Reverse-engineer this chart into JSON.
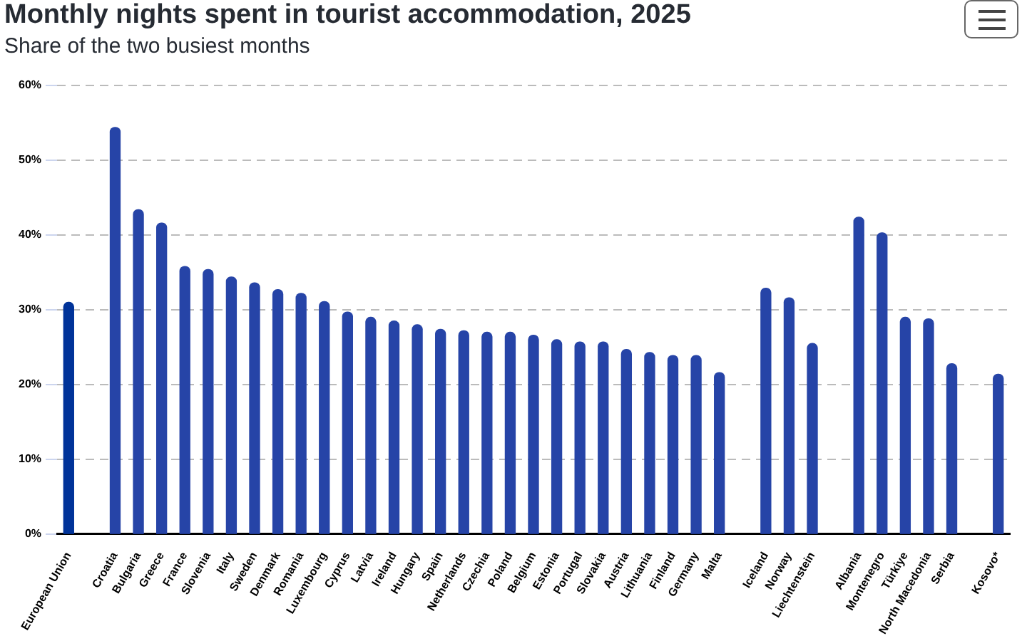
{
  "chart_data": {
    "type": "bar",
    "title": "Monthly nights spent in tourist accommodation, 2025",
    "subtitle": "Share of the two busiest months",
    "categories": [
      "European Union",
      null,
      "Croatia",
      "Bulgaria",
      "Greece",
      "France",
      "Slovenia",
      "Italy",
      "Sweden",
      "Denmark",
      "Romania",
      "Luxembourg",
      "Cyprus",
      "Latvia",
      "Ireland",
      "Hungary",
      "Spain",
      "Netherlands",
      "Czechia",
      "Poland",
      "Belgium",
      "Estonia",
      "Portugal",
      "Slovakia",
      "Austria",
      "Lithuania",
      "Finland",
      "Germany",
      "Malta",
      null,
      "Iceland",
      "Norway",
      "Liechtenstein",
      null,
      "Albania",
      "Montenegro",
      "Türkiye",
      "North Macedonia",
      "Serbia",
      null,
      "Kosovo*"
    ],
    "values": [
      31.0,
      null,
      54.4,
      43.4,
      41.6,
      35.8,
      35.4,
      34.4,
      33.6,
      32.7,
      32.2,
      31.1,
      29.7,
      29.0,
      28.5,
      28.0,
      27.4,
      27.2,
      27.0,
      27.0,
      26.6,
      26.0,
      25.7,
      25.7,
      24.7,
      24.3,
      23.9,
      23.9,
      21.6,
      null,
      32.9,
      31.6,
      25.5,
      null,
      42.4,
      40.3,
      29.0,
      28.8,
      22.8,
      null,
      21.4
    ],
    "colors": [
      "#003399",
      "#2644a7",
      "#2644a7",
      "#2644a7",
      "#2644a7",
      "#2644a7",
      "#2644a7",
      "#2644a7",
      "#2644a7",
      "#2644a7",
      "#2644a7",
      "#2644a7",
      "#2644a7",
      "#2644a7",
      "#2644a7",
      "#2644a7",
      "#2644a7",
      "#2644a7",
      "#2644a7",
      "#2644a7",
      "#2644a7",
      "#2644a7",
      "#2644a7",
      "#2644a7",
      "#2644a7",
      "#2644a7",
      "#2644a7",
      "#2644a7",
      "#2644a7",
      "#2644a7",
      "#2644a7",
      "#2644a7",
      "#2644a7",
      "#2644a7",
      "#2644a7",
      "#2644a7",
      "#2644a7",
      "#2644a7",
      "#2644a7",
      "#2644a7",
      "#2644a7"
    ],
    "ylim": [
      0,
      60
    ],
    "yticks": [
      {
        "value": 0,
        "label": "0%"
      },
      {
        "value": 10,
        "label": "10%"
      },
      {
        "value": 20,
        "label": "20%"
      },
      {
        "value": 30,
        "label": "30%"
      },
      {
        "value": 40,
        "label": "40%"
      },
      {
        "value": 50,
        "label": "50%"
      },
      {
        "value": 60,
        "label": "60%"
      }
    ],
    "grid": "y",
    "legend": false
  }
}
